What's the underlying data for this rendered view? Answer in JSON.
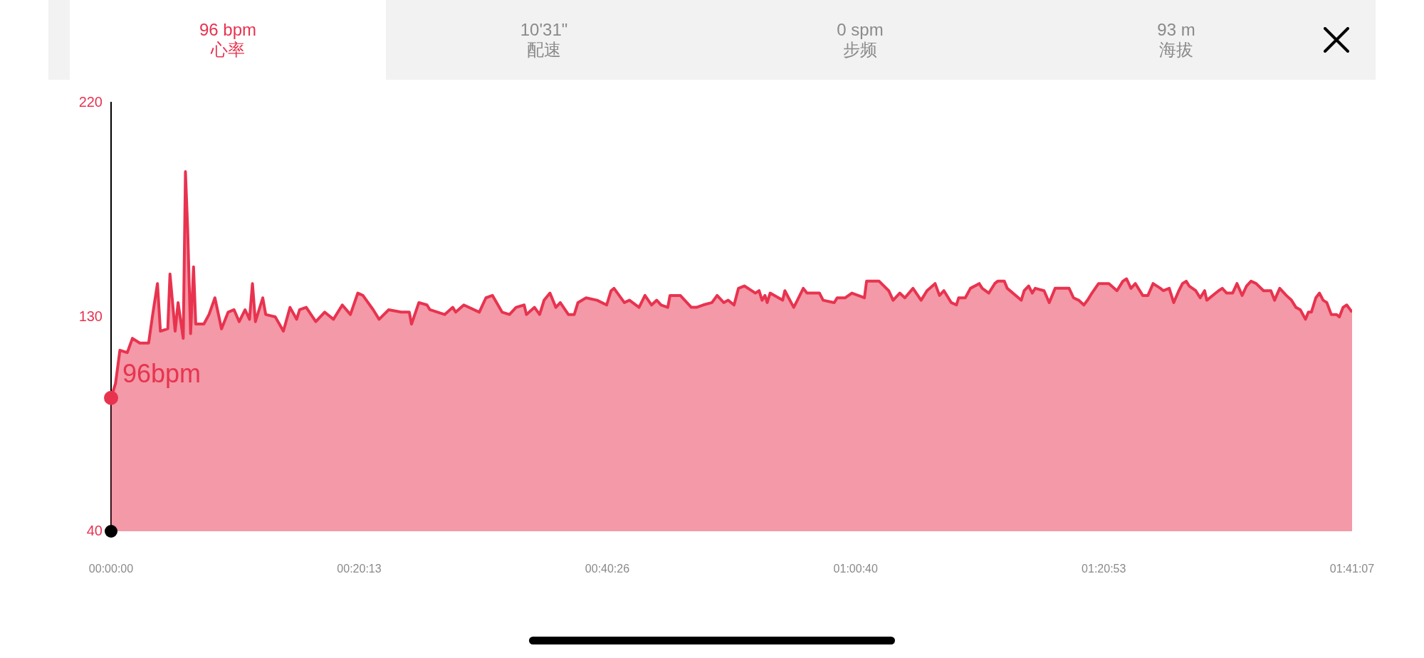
{
  "chart_data": {
    "type": "area",
    "grid": false,
    "legend": false,
    "marker": "none",
    "line_style": "solid",
    "xlim": [
      0,
      1.68528
    ],
    "xticks": [
      {
        "value": 0,
        "label": "00:00:00"
      },
      {
        "value": 0.33694,
        "label": "00:20:13"
      },
      {
        "value": 0.67389,
        "label": "00:40:26"
      },
      {
        "value": 1.01111,
        "label": "01:00:40"
      },
      {
        "value": 1.34806,
        "label": "01:20:53"
      },
      {
        "value": 1.68528,
        "label": "01:41:07"
      }
    ],
    "ylim": [
      40,
      220
    ],
    "yticks": [
      40,
      130,
      220
    ],
    "annotations": [
      "96 bpm",
      "心率",
      "10'31\"",
      "配速",
      "0 spm",
      "步频",
      "93 m",
      "海拔",
      {
        "text": "96bpm",
        "x": 0,
        "y": 96
      }
    ],
    "series": [
      {
        "color": "#e8334f",
        "x": [
          0,
          0.006,
          0.012,
          0.022,
          0.029,
          0.039,
          0.051,
          0.057,
          0.063,
          0.067,
          0.077,
          0.08,
          0.087,
          0.091,
          0.098,
          0.101,
          0.104,
          0.108,
          0.112,
          0.115,
          0.126,
          0.133,
          0.141,
          0.15,
          0.159,
          0.167,
          0.174,
          0.182,
          0.188,
          0.192,
          0.196,
          0.206,
          0.21,
          0.223,
          0.234,
          0.243,
          0.252,
          0.256,
          0.265,
          0.278,
          0.29,
          0.302,
          0.314,
          0.325,
          0.335,
          0.342,
          0.356,
          0.364,
          0.377,
          0.394,
          0.405,
          0.408,
          0.418,
          0.429,
          0.433,
          0.453,
          0.464,
          0.468,
          0.479,
          0.5,
          0.509,
          0.518,
          0.531,
          0.541,
          0.55,
          0.561,
          0.564,
          0.575,
          0.582,
          0.588,
          0.596,
          0.604,
          0.61,
          0.621,
          0.629,
          0.634,
          0.645,
          0.66,
          0.673,
          0.679,
          0.683,
          0.697,
          0.704,
          0.717,
          0.725,
          0.734,
          0.741,
          0.747,
          0.756,
          0.759,
          0.773,
          0.788,
          0.795,
          0.804,
          0.816,
          0.823,
          0.832,
          0.838,
          0.846,
          0.852,
          0.86,
          0.875,
          0.88,
          0.884,
          0.888,
          0.891,
          0.895,
          0.912,
          0.915,
          0.927,
          0.932,
          0.94,
          0.945,
          0.962,
          0.967,
          0.982,
          0.986,
          0.997,
          1.006,
          1.023,
          1.026,
          1.033,
          1.043,
          1.056,
          1.062,
          1.071,
          1.078,
          1.089,
          1.1,
          1.108,
          1.119,
          1.125,
          1.131,
          1.141,
          1.148,
          1.151,
          1.16,
          1.167,
          1.179,
          1.183,
          1.192,
          1.2,
          1.204,
          1.213,
          1.217,
          1.236,
          1.24,
          1.246,
          1.251,
          1.255,
          1.267,
          1.274,
          1.282,
          1.301,
          1.307,
          1.314,
          1.321,
          1.326,
          1.332,
          1.341,
          1.355,
          1.366,
          1.374,
          1.379,
          1.385,
          1.391,
          1.401,
          1.408,
          1.415,
          1.425,
          1.429,
          1.437,
          1.443,
          1.45,
          1.455,
          1.46,
          1.464,
          1.473,
          1.479,
          1.485,
          1.488,
          1.504,
          1.509,
          1.515,
          1.523,
          1.529,
          1.536,
          1.542,
          1.548,
          1.555,
          1.565,
          1.575,
          1.58,
          1.587,
          1.596,
          1.603,
          1.609,
          1.615,
          1.622,
          1.626,
          1.63,
          1.636,
          1.641,
          1.646,
          1.651,
          1.657,
          1.664,
          1.668,
          1.673,
          1.678,
          1.68528
        ],
        "values": [
          96,
          102,
          116,
          115,
          121,
          119,
          119,
          132,
          144,
          124,
          125,
          148,
          124,
          136,
          121,
          191,
          167,
          123,
          151,
          127,
          127,
          131,
          138,
          125,
          132,
          133,
          128,
          133,
          129,
          144,
          128,
          138,
          131,
          130,
          124,
          134,
          129,
          133,
          134,
          128,
          132,
          129,
          135,
          131,
          140,
          139,
          133,
          129,
          133,
          132,
          132,
          127,
          136,
          135,
          133,
          131,
          134,
          132,
          135,
          132,
          138,
          139,
          132,
          131,
          134,
          135,
          131,
          134,
          131,
          137,
          140,
          134,
          136,
          131,
          131,
          136,
          138,
          137,
          135,
          141,
          142,
          136,
          137,
          134,
          139,
          135,
          137,
          135,
          134,
          139,
          139,
          134,
          134,
          135,
          136,
          139,
          136,
          137,
          135,
          142,
          143,
          140,
          141,
          137,
          139,
          136,
          140,
          137,
          141,
          134,
          137,
          142,
          140,
          140,
          137,
          136,
          138,
          138,
          140,
          138,
          145,
          145,
          145,
          141,
          137,
          140,
          138,
          142,
          137,
          141,
          144,
          139,
          141,
          136,
          135,
          138,
          138,
          142,
          144,
          142,
          140,
          144,
          145,
          145,
          142,
          137,
          141,
          143,
          140,
          142,
          141,
          136,
          142,
          142,
          138,
          137,
          135,
          137,
          140,
          144,
          144,
          141,
          145,
          146,
          142,
          144,
          139,
          139,
          144,
          142,
          141,
          142,
          136,
          141,
          144,
          145,
          143,
          141,
          138,
          141,
          137,
          141,
          142,
          140,
          140,
          144,
          139,
          143,
          145,
          144,
          141,
          141,
          137,
          142,
          139,
          137,
          134,
          133,
          129,
          132,
          132,
          138,
          140,
          137,
          136,
          131,
          131,
          130,
          134,
          135,
          132
        ]
      }
    ]
  }
}
